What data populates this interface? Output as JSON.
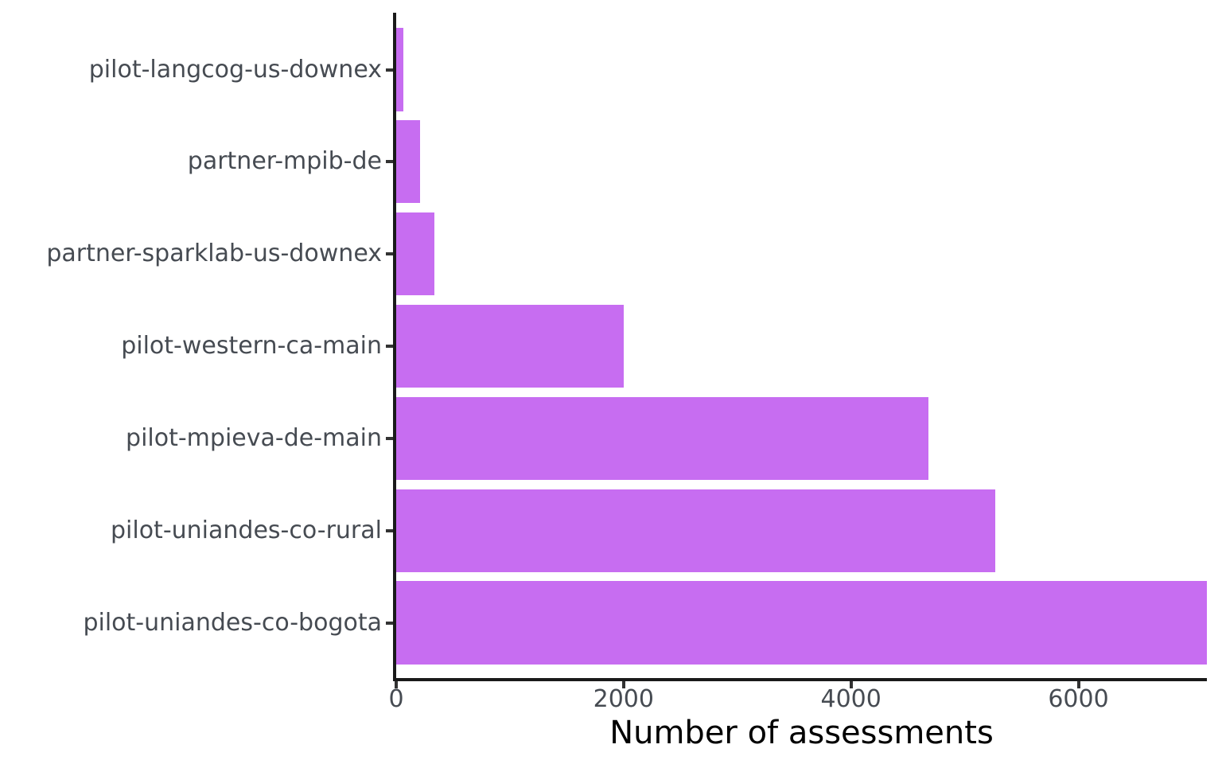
{
  "chart_data": {
    "type": "bar",
    "orientation": "horizontal",
    "title": "",
    "xlabel": "Number of assessments",
    "ylabel": "",
    "categories": [
      "pilot-langcog-us-downex",
      "partner-mpib-de",
      "partner-sparklab-us-downex",
      "pilot-western-ca-main",
      "pilot-mpieva-de-main",
      "pilot-uniandes-co-rural",
      "pilot-uniandes-co-bogota"
    ],
    "values": [
      60,
      210,
      335,
      2000,
      4680,
      5270,
      7130
    ],
    "x_ticks": [
      0,
      2000,
      4000,
      6000
    ],
    "x_tick_labels": [
      "0",
      "2000",
      "4000",
      "6000"
    ],
    "xlim": [
      0,
      7130
    ],
    "grid": false,
    "legend": "none"
  },
  "style": {
    "bar_color": "#C76DF1",
    "axis_line_color": "#1a1a1a",
    "tick_mark_color": "#333333",
    "axis_text_color": "#464B52",
    "axis_title_color": "#000000",
    "background_color": "#FFFFFF"
  }
}
